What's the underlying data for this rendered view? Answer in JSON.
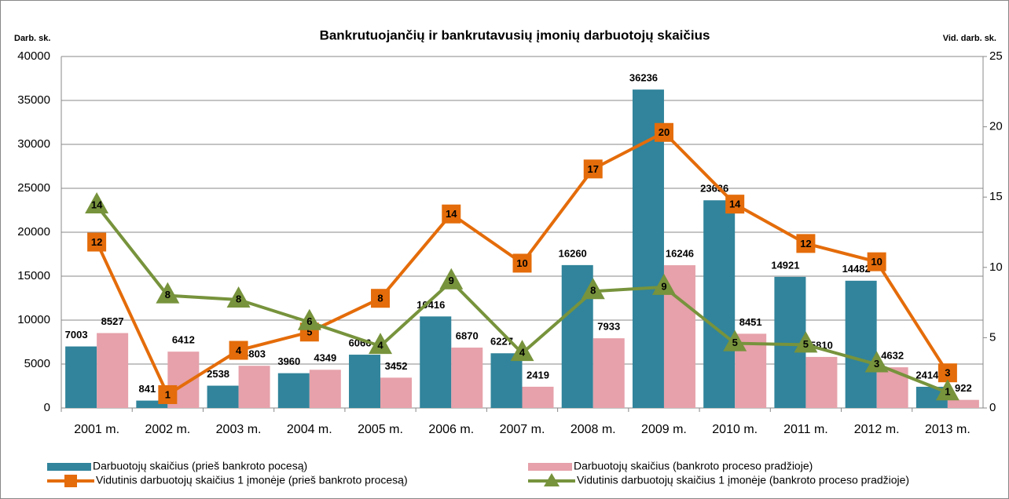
{
  "chart_data": {
    "type": "bar",
    "title": "Bankrutuojančių ir bankrutavusių įmonių darbuotojų skaičius",
    "y_label": "Darb. sk.",
    "y2_label": "Vid. darb. sk.",
    "categories": [
      "2001 m.",
      "2002 m.",
      "2003 m.",
      "2004 m.",
      "2005 m.",
      "2006 m.",
      "2007 m.",
      "2008 m.",
      "2009 m.",
      "2010 m.",
      "2011 m.",
      "2012 m.",
      "2013 m."
    ],
    "ylim": [
      0,
      40000
    ],
    "yticks": [
      0,
      5000,
      10000,
      15000,
      20000,
      25000,
      30000,
      35000,
      40000
    ],
    "y2lim": [
      0,
      25
    ],
    "y2ticks": [
      0,
      5,
      10,
      15,
      20,
      25
    ],
    "grid": true,
    "series": [
      {
        "name": "Darbuotojų skaičius (prieš bankroto pocesą)",
        "type": "bar",
        "color": "#31849b",
        "values": [
          7003,
          841,
          2538,
          3960,
          6066,
          10416,
          6227,
          16260,
          36236,
          23636,
          14921,
          14482,
          2414
        ]
      },
      {
        "name": "Darbuotojų skaičius (bankroto proceso pradžioje)",
        "type": "bar",
        "color": "#e6a1aa",
        "values": [
          8527,
          6412,
          4803,
          4349,
          3452,
          6870,
          2419,
          7933,
          16246,
          8451,
          5810,
          4632,
          922
        ]
      },
      {
        "name": "Vidutinis darbuotojų skaičius 1 įmonėje (prieš bankroto procesą)",
        "type": "line",
        "marker": "square",
        "axis": "y2",
        "color": "#e46c0a",
        "values": [
          11.8,
          0.95,
          4.1,
          5.4,
          7.8,
          13.8,
          10.3,
          17.0,
          19.6,
          14.5,
          11.7,
          10.4,
          2.5
        ],
        "value_labels": [
          "12",
          "1",
          "4",
          "5",
          "8",
          "14",
          "10",
          "17",
          "20",
          "14",
          "12",
          "10",
          "3"
        ]
      },
      {
        "name": "Vidutinis darbuotojų skaičius 1 įmonėje (bankroto proceso pradžioje)",
        "type": "line",
        "marker": "triangle",
        "axis": "y2",
        "color": "#77933c",
        "values": [
          14.4,
          8.0,
          7.7,
          6.1,
          4.4,
          9.0,
          3.9,
          8.3,
          8.6,
          4.6,
          4.5,
          3.1,
          1.1
        ],
        "value_labels": [
          "14",
          "8",
          "8",
          "6",
          "4",
          "9",
          "4",
          "8",
          "9",
          "5",
          "5",
          "3",
          "1"
        ]
      }
    ]
  }
}
